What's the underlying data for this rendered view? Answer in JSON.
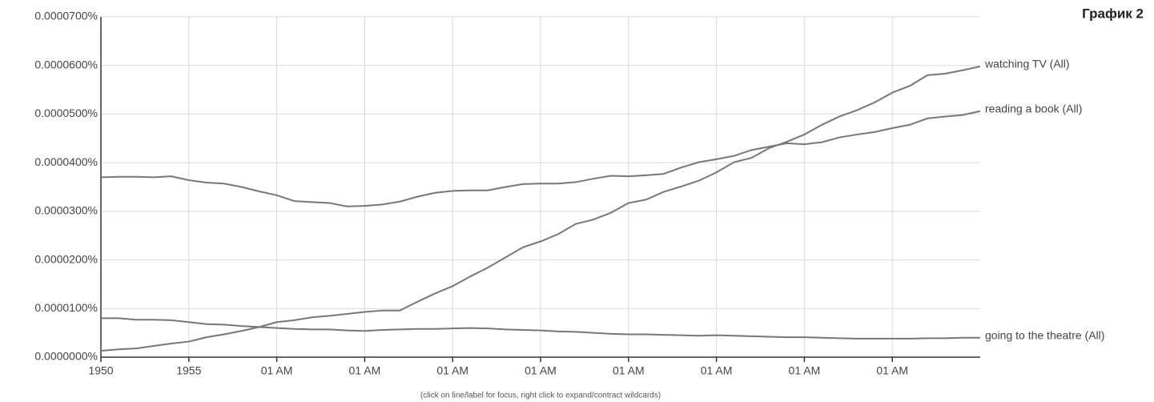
{
  "chart_data": {
    "type": "line",
    "title": "График 2",
    "note": "(click on line/label for focus, right click to expand/contract wildcards)",
    "x": [
      1950,
      1951,
      1952,
      1953,
      1954,
      1955,
      1956,
      1957,
      1958,
      1959,
      1960,
      1961,
      1962,
      1963,
      1964,
      1965,
      1966,
      1967,
      1968,
      1969,
      1970,
      1971,
      1972,
      1973,
      1974,
      1975,
      1976,
      1977,
      1978,
      1979,
      1980,
      1981,
      1982,
      1983,
      1984,
      1985,
      1986,
      1987,
      1988,
      1989,
      1990,
      1991,
      1992,
      1993,
      1994,
      1995,
      1996,
      1997,
      1998,
      1999,
      2000
    ],
    "xlim": [
      1950,
      2000
    ],
    "xticks": [
      1950,
      1955,
      {
        "value": 1960,
        "label": "01 AM"
      },
      {
        "value": 1965,
        "label": "01 AM"
      },
      {
        "value": 1970,
        "label": "01 AM"
      },
      {
        "value": 1975,
        "label": "01 AM"
      },
      {
        "value": 1980,
        "label": "01 AM"
      },
      {
        "value": 1985,
        "label": "01 AM"
      },
      {
        "value": 1990,
        "label": "01 AM"
      },
      {
        "value": 1995,
        "label": "01 AM"
      }
    ],
    "ylim": [
      0,
      7e-05
    ],
    "yticks": [
      {
        "value": 0,
        "label": "0.0000000%"
      },
      {
        "value": 1e-05,
        "label": "0.0000100%"
      },
      {
        "value": 2e-05,
        "label": "0.0000200%"
      },
      {
        "value": 3e-05,
        "label": "0.0000300%"
      },
      {
        "value": 4e-05,
        "label": "0.0000400%"
      },
      {
        "value": 5e-05,
        "label": "0.0000500%"
      },
      {
        "value": 6e-05,
        "label": "0.0000600%"
      },
      {
        "value": 7e-05,
        "label": "0.0000700%"
      }
    ],
    "grid": true,
    "series": [
      {
        "name": "reading a book (All)",
        "color": "#777777",
        "values": [
          3.7e-05,
          3.71e-05,
          3.71e-05,
          3.7e-05,
          3.72e-05,
          3.64e-05,
          3.59e-05,
          3.57e-05,
          3.5e-05,
          3.41e-05,
          3.33e-05,
          3.21e-05,
          3.19e-05,
          3.17e-05,
          3.1e-05,
          3.11e-05,
          3.14e-05,
          3.2e-05,
          3.3e-05,
          3.38e-05,
          3.42e-05,
          3.43e-05,
          3.43e-05,
          3.5e-05,
          3.56e-05,
          3.57e-05,
          3.57e-05,
          3.6e-05,
          3.67e-05,
          3.73e-05,
          3.72e-05,
          3.74e-05,
          3.77e-05,
          3.9e-05,
          4.01e-05,
          4.07e-05,
          4.14e-05,
          4.26e-05,
          4.33e-05,
          4.4e-05,
          4.38e-05,
          4.42e-05,
          4.52e-05,
          4.58e-05,
          4.63e-05,
          4.71e-05,
          4.78e-05,
          4.91e-05,
          4.95e-05,
          4.98e-05,
          5.06e-05
        ]
      },
      {
        "name": "watching TV (All)",
        "color": "#777777",
        "values": [
          1.3e-06,
          1.6e-06,
          1.8e-06,
          2.3e-06,
          2.8e-06,
          3.2e-06,
          4.1e-06,
          4.7e-06,
          5.4e-06,
          6.2e-06,
          7.2e-06,
          7.6e-06,
          8.2e-06,
          8.5e-06,
          8.9e-06,
          9.3e-06,
          9.6e-06,
          9.6e-06,
          1.14e-05,
          1.31e-05,
          1.46e-05,
          1.66e-05,
          1.84e-05,
          2.05e-05,
          2.26e-05,
          2.38e-05,
          2.53e-05,
          2.74e-05,
          2.83e-05,
          2.97e-05,
          3.17e-05,
          3.24e-05,
          3.4e-05,
          3.51e-05,
          3.63e-05,
          3.8e-05,
          4.01e-05,
          4.1e-05,
          4.3e-05,
          4.43e-05,
          4.58e-05,
          4.78e-05,
          4.95e-05,
          5.08e-05,
          5.24e-05,
          5.44e-05,
          5.58e-05,
          5.8e-05,
          5.83e-05,
          5.9e-05,
          5.98e-05
        ]
      },
      {
        "name": "going to the theatre (All)",
        "color": "#777777",
        "values": [
          8e-06,
          8e-06,
          7.7e-06,
          7.7e-06,
          7.6e-06,
          7.2e-06,
          6.8e-06,
          6.7e-06,
          6.4e-06,
          6.2e-06,
          6e-06,
          5.8e-06,
          5.7e-06,
          5.7e-06,
          5.5e-06,
          5.4e-06,
          5.6e-06,
          5.7e-06,
          5.8e-06,
          5.8e-06,
          5.9e-06,
          6e-06,
          5.9e-06,
          5.7e-06,
          5.6e-06,
          5.5e-06,
          5.3e-06,
          5.2e-06,
          5e-06,
          4.8e-06,
          4.7e-06,
          4.7e-06,
          4.6e-06,
          4.5e-06,
          4.4e-06,
          4.5e-06,
          4.4e-06,
          4.3e-06,
          4.2e-06,
          4.1e-06,
          4.1e-06,
          4e-06,
          3.9e-06,
          3.8e-06,
          3.8e-06,
          3.8e-06,
          3.8e-06,
          3.9e-06,
          3.9e-06,
          4e-06,
          4e-06
        ]
      }
    ]
  }
}
